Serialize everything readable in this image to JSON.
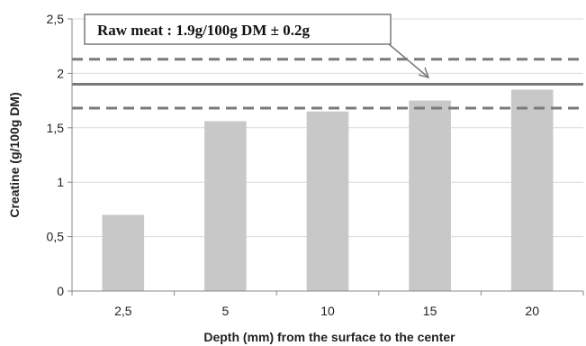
{
  "chart_data": {
    "type": "bar",
    "title": "",
    "xlabel": "Depth (mm) from the surface to the center",
    "ylabel": "Creatine (g/100g DM)",
    "categories": [
      "2,5",
      "5",
      "10",
      "15",
      "20"
    ],
    "series": [
      {
        "values": [
          0.7,
          1.56,
          1.65,
          1.75,
          1.85
        ]
      }
    ],
    "ylim": [
      0,
      2.5
    ],
    "yticks": [
      0,
      0.5,
      1,
      1.5,
      2,
      2.5
    ],
    "ytick_labels": [
      "0",
      "0,5",
      "1",
      "1,5",
      "2",
      "2,5"
    ],
    "grid": true,
    "reference_lines": [
      {
        "value": 1.9,
        "style": "solid",
        "role": "mean"
      },
      {
        "value": 2.13,
        "style": "dashed",
        "role": "upper"
      },
      {
        "value": 1.68,
        "style": "dashed",
        "role": "lower"
      }
    ],
    "annotation": "Raw meat : 1.9g/100g DM ± 0.2g",
    "colors": {
      "bar": "#c8c8c8",
      "reference_line": "#7a7a7a",
      "grid": "#d9d9d9",
      "axis": "#888888"
    }
  }
}
